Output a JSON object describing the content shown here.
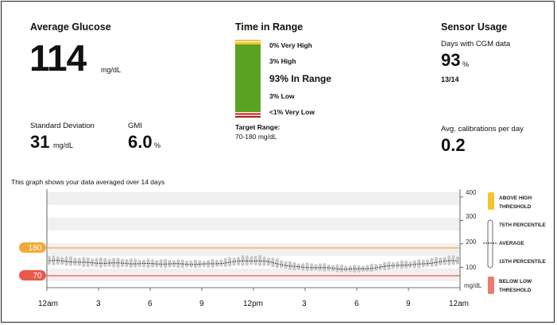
{
  "avg_glucose": {
    "title": "Average Glucose",
    "value": "114",
    "unit": "mg/dL"
  },
  "std_dev": {
    "label": "Standard Deviation",
    "value": "31",
    "unit": "mg/dL"
  },
  "gmi": {
    "label": "GMI",
    "value": "6.0",
    "unit": "%"
  },
  "time_in_range": {
    "title": "Time in Range",
    "very_high": "0% Very High",
    "high": "3% High",
    "in_range": "93% In Range",
    "low": "3% Low",
    "very_low": "<1% Very Low",
    "target_label": "Target Range:",
    "target_value": "70-180 mg/dL",
    "colors": {
      "very_high": "#f4c430",
      "high": "#f4c430",
      "in_range": "#5aa321",
      "low": "#e8594b",
      "very_low": "#a8201a"
    }
  },
  "sensor_usage": {
    "title": "Sensor Usage",
    "days_label": "Days with CGM data",
    "days_value": "93",
    "days_unit": "%",
    "days_fraction": "13/14",
    "calib_label": "Avg. calibrations per day",
    "calib_value": "0.2"
  },
  "graph": {
    "caption": "This graph shows your data averaged over 14 days",
    "high_threshold": "180",
    "low_threshold": "70",
    "y_ticks": [
      "400",
      "300",
      "200",
      "100"
    ],
    "y_unit": "mg/dL",
    "x_ticks": [
      "12am",
      "3",
      "6",
      "9",
      "12pm",
      "3",
      "6",
      "9",
      "12am"
    ]
  },
  "legend": {
    "above_high": "ABOVE HIGH THRESHOLD",
    "p75": "75TH PERCENTILE",
    "average": "AVERAGE",
    "p15": "15TH PERCENTILE",
    "below_low": "BELOW LOW THRESHOLD"
  },
  "chart_data": {
    "type": "area",
    "title": "This graph shows your data averaged over 14 days",
    "xlabel": "",
    "ylabel": "mg/dL",
    "ylim": [
      0,
      420
    ],
    "x": [
      "12am",
      "3",
      "6",
      "9",
      "12pm",
      "3",
      "6",
      "9",
      "12am"
    ],
    "high_threshold": 180,
    "low_threshold": 70,
    "series": [
      {
        "name": "75TH PERCENTILE",
        "values": [
          148,
          140,
          134,
          130,
          150,
          118,
          108,
          128,
          150
        ]
      },
      {
        "name": "AVERAGE",
        "values": [
          128,
          118,
          115,
          113,
          128,
          100,
          92,
          110,
          128
        ]
      },
      {
        "name": "15TH PERCENTILE",
        "values": [
          110,
          100,
          98,
          98,
          108,
          85,
          78,
          95,
          110
        ]
      }
    ]
  }
}
